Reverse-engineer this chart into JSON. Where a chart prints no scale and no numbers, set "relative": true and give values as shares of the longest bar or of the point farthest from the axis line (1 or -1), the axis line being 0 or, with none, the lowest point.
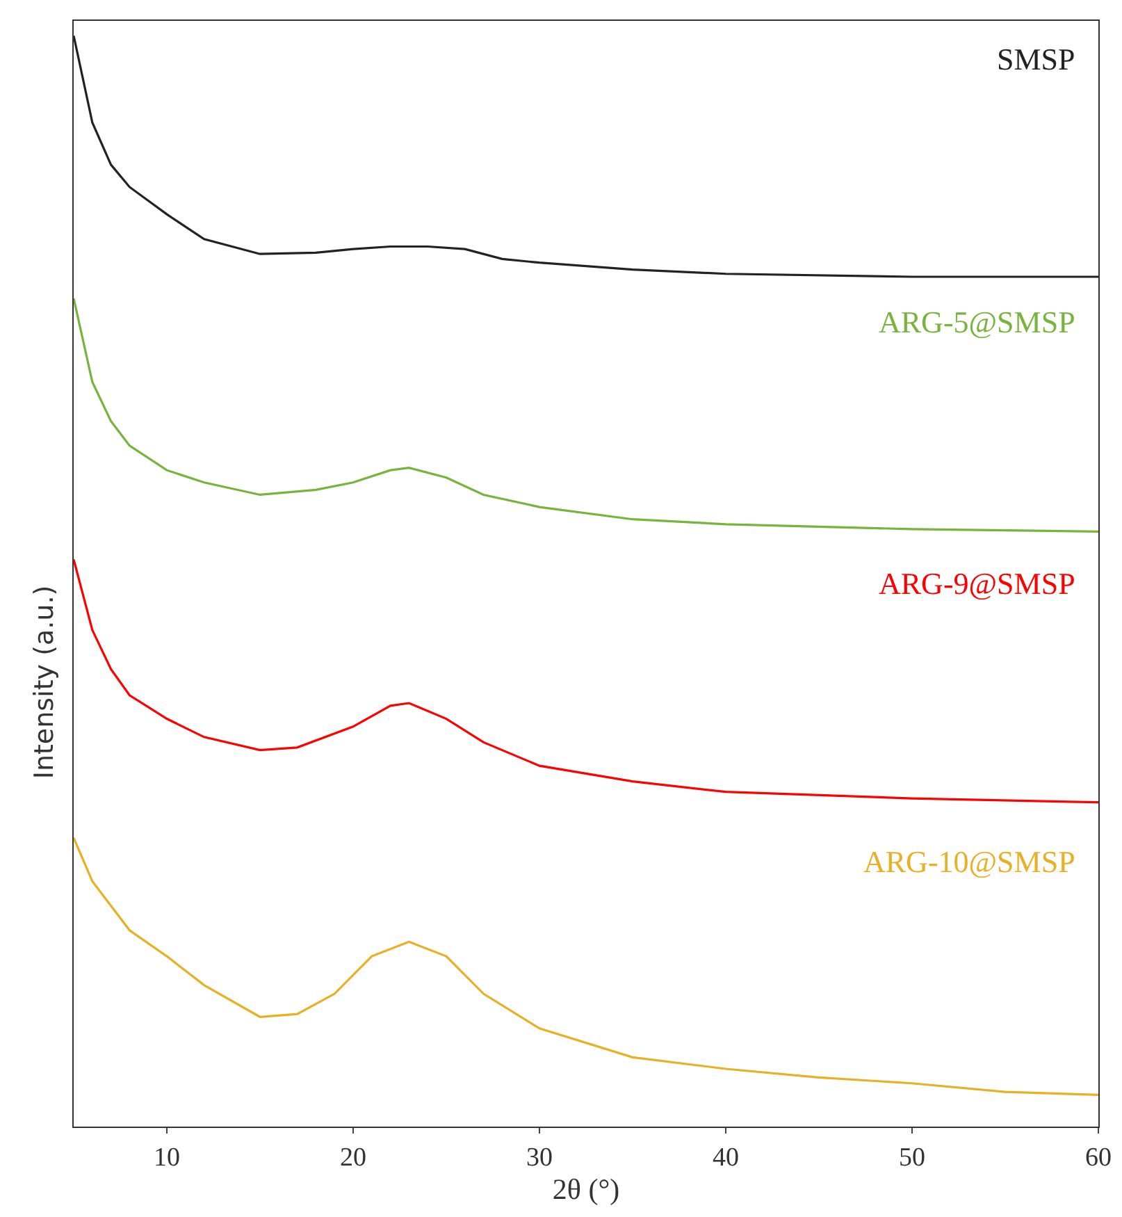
{
  "chart_data": [
    {
      "type": "line",
      "relative": true,
      "xlim": [
        5,
        60
      ],
      "tick_labels": false,
      "grid": false,
      "legend": false,
      "marker": "none",
      "line_style": "solid",
      "x": [
        5,
        6,
        7,
        8,
        10,
        12,
        15,
        18,
        20,
        22,
        24,
        26,
        28,
        30,
        35,
        40,
        50,
        60
      ],
      "series": [
        {
          "name": "SMSP",
          "color": "#222222",
          "values": [
            1,
            0.65,
            0.48,
            0.39,
            0.28,
            0.18,
            0.12,
            0.125,
            0.14,
            0.15,
            0.15,
            0.14,
            0.1,
            0.085,
            0.057,
            0.04,
            0.028,
            0.028
          ]
        }
      ]
    },
    {
      "type": "line",
      "relative": true,
      "xlim": [
        5,
        60
      ],
      "tick_labels": false,
      "grid": false,
      "legend": false,
      "marker": "none",
      "line_style": "solid",
      "x": [
        5,
        6,
        7,
        8,
        10,
        12,
        15,
        18,
        20,
        22,
        23,
        25,
        27,
        30,
        35,
        40,
        50,
        60
      ],
      "series": [
        {
          "name": "ARG-5@SMSP",
          "color": "#77b43a",
          "values": [
            1,
            0.66,
            0.5,
            0.4,
            0.3,
            0.25,
            0.2,
            0.22,
            0.25,
            0.3,
            0.31,
            0.27,
            0.2,
            0.15,
            0.1,
            0.08,
            0.06,
            0.05
          ]
        }
      ]
    },
    {
      "type": "line",
      "relative": true,
      "xlim": [
        5,
        60
      ],
      "tick_labels": false,
      "grid": false,
      "legend": false,
      "marker": "none",
      "line_style": "solid",
      "ylabel": "Intensity (a.u.)",
      "x": [
        5,
        6,
        7,
        8,
        10,
        12,
        15,
        17,
        20,
        22,
        23,
        25,
        27,
        30,
        35,
        40,
        50,
        60
      ],
      "series": [
        {
          "name": "ARG-9@SMSP",
          "color": "#ff0000",
          "values": [
            1,
            0.73,
            0.58,
            0.48,
            0.39,
            0.32,
            0.27,
            0.28,
            0.36,
            0.44,
            0.45,
            0.39,
            0.3,
            0.21,
            0.15,
            0.11,
            0.085,
            0.07
          ]
        }
      ]
    },
    {
      "type": "line",
      "relative": true,
      "xlim": [
        5,
        60
      ],
      "xticks": [
        10,
        20,
        30,
        40,
        50,
        60
      ],
      "tick_labels": "x",
      "grid": false,
      "legend": false,
      "marker": "none",
      "line_style": "solid",
      "xlabel": "2θ (°)",
      "x": [
        5,
        6,
        8,
        10,
        12,
        15,
        17,
        19,
        21,
        23,
        25,
        27,
        30,
        35,
        40,
        45,
        50,
        55,
        60
      ],
      "series": [
        {
          "name": "ARG-10@SMSP",
          "color": "#e8b024",
          "values": [
            1,
            0.85,
            0.68,
            0.59,
            0.49,
            0.38,
            0.39,
            0.46,
            0.59,
            0.64,
            0.59,
            0.46,
            0.34,
            0.24,
            0.2,
            0.17,
            0.15,
            0.12,
            0.11
          ]
        }
      ]
    }
  ]
}
